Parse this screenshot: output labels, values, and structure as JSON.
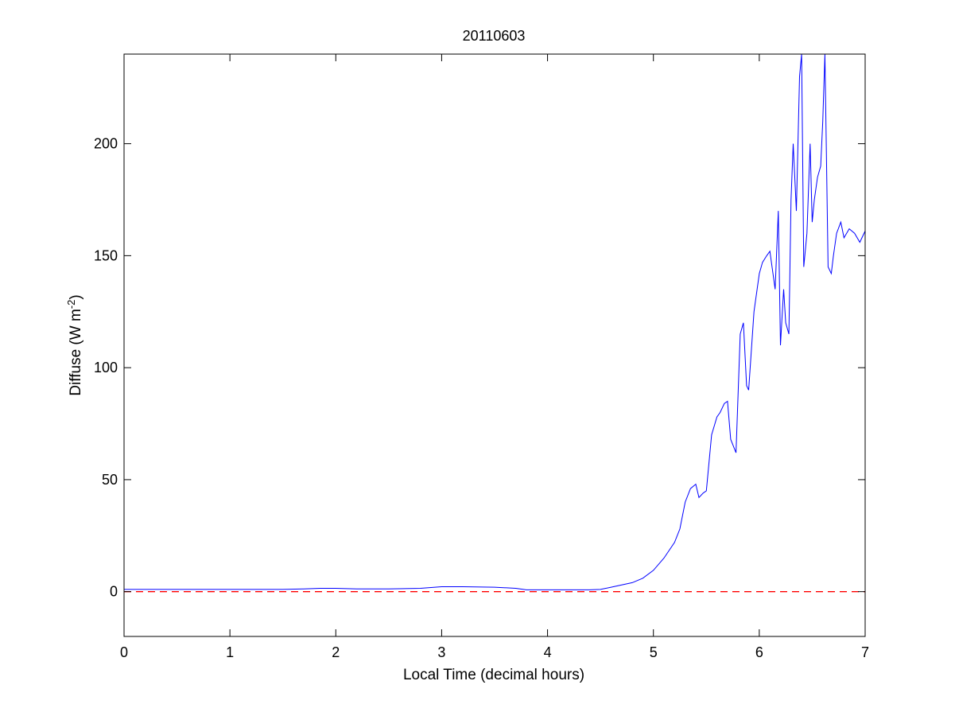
{
  "chart_data": {
    "type": "line",
    "title": "20110603",
    "xlabel": "Local Time (decimal hours)",
    "ylabel": {
      "prefix": "Diffuse (W m",
      "superscript": "-2",
      "suffix": ")"
    },
    "xlim": [
      0,
      7
    ],
    "ylim": [
      -20,
      240
    ],
    "xticks": [
      0,
      1,
      2,
      3,
      4,
      5,
      6,
      7
    ],
    "xtick_labels": [
      "0",
      "1",
      "2",
      "3",
      "4",
      "5",
      "6",
      "7"
    ],
    "yticks": [
      0,
      50,
      100,
      150,
      200
    ],
    "ytick_labels": [
      "0",
      "50",
      "100",
      "150",
      "200"
    ],
    "grid": false,
    "legend": null,
    "reference_line": {
      "y": 0,
      "style": "dashed",
      "color": "#ff0000"
    },
    "series": [
      {
        "color": "#0000ff",
        "x": [
          0,
          0.5,
          1.0,
          1.5,
          1.7,
          1.85,
          2.0,
          2.2,
          2.5,
          2.8,
          3.0,
          3.2,
          3.5,
          3.7,
          3.8,
          4.0,
          4.2,
          4.4,
          4.5,
          4.6,
          4.7,
          4.8,
          4.9,
          5.0,
          5.1,
          5.2,
          5.25,
          5.3,
          5.35,
          5.4,
          5.43,
          5.47,
          5.5,
          5.55,
          5.6,
          5.63,
          5.67,
          5.7,
          5.73,
          5.78,
          5.82,
          5.85,
          5.88,
          5.9,
          5.95,
          6.0,
          6.03,
          6.07,
          6.1,
          6.15,
          6.18,
          6.2,
          6.23,
          6.25,
          6.28,
          6.3,
          6.32,
          6.35,
          6.38,
          6.4,
          6.42,
          6.45,
          6.48,
          6.5,
          6.52,
          6.55,
          6.58,
          6.6,
          6.62,
          6.65,
          6.68,
          6.7,
          6.73,
          6.77,
          6.8,
          6.85,
          6.9,
          6.95,
          7.0
        ],
        "y": [
          1,
          1,
          1,
          1,
          1.2,
          1.5,
          1.5,
          1.2,
          1.2,
          1.5,
          2.2,
          2.2,
          2.0,
          1.5,
          0.8,
          0.8,
          0.8,
          0.8,
          1.0,
          2.0,
          3.0,
          4.0,
          6.0,
          9.5,
          15,
          22,
          28,
          40,
          46,
          48,
          42,
          44,
          45,
          70,
          78,
          80,
          84,
          85,
          68,
          62,
          115,
          120,
          92,
          90,
          125,
          142,
          147,
          150,
          152,
          135,
          170,
          110,
          135,
          120,
          115,
          175,
          200,
          170,
          230,
          240,
          145,
          160,
          200,
          165,
          175,
          185,
          190,
          210,
          240,
          145,
          142,
          150,
          160,
          165,
          158,
          162,
          160,
          156,
          161
        ]
      }
    ]
  }
}
